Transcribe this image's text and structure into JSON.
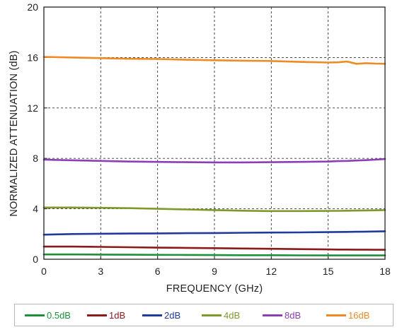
{
  "chart_data": {
    "type": "line",
    "title": "",
    "xlabel": "FREQUENCY (GHz)",
    "ylabel": "NORMALIZED ATTENUATION (dB)",
    "xlim": [
      0,
      18
    ],
    "ylim": [
      0,
      20
    ],
    "xticks": [
      "0",
      "3",
      "6",
      "9",
      "12",
      "15",
      "18"
    ],
    "yticks": [
      "0",
      "4",
      "8",
      "12",
      "16",
      "20"
    ],
    "grid": true,
    "legend_position": "bottom",
    "x": [
      0,
      1.5,
      3,
      4.5,
      6,
      7.5,
      9,
      10.5,
      12,
      13.5,
      15,
      15.5,
      16,
      16.5,
      17,
      17.5,
      18
    ],
    "series": [
      {
        "name": "0.5dB",
        "color": "#1e8f3a",
        "values": [
          0.38,
          0.38,
          0.37,
          0.36,
          0.35,
          0.34,
          0.33,
          0.32,
          0.32,
          0.31,
          0.3,
          0.3,
          0.3,
          0.3,
          0.3,
          0.3,
          0.3
        ]
      },
      {
        "name": "1dB",
        "color": "#8b1a1a",
        "values": [
          1.0,
          1.0,
          0.98,
          0.95,
          0.92,
          0.9,
          0.88,
          0.85,
          0.83,
          0.8,
          0.78,
          0.77,
          0.77,
          0.76,
          0.76,
          0.75,
          0.75
        ]
      },
      {
        "name": "2dB",
        "color": "#1f3b9c",
        "values": [
          1.95,
          2.0,
          2.02,
          2.04,
          2.05,
          2.07,
          2.08,
          2.1,
          2.12,
          2.13,
          2.15,
          2.16,
          2.17,
          2.18,
          2.19,
          2.2,
          2.22
        ]
      },
      {
        "name": "4dB",
        "color": "#7f9a2a",
        "values": [
          4.1,
          4.1,
          4.08,
          4.05,
          4.0,
          3.95,
          3.9,
          3.85,
          3.82,
          3.82,
          3.83,
          3.84,
          3.85,
          3.86,
          3.87,
          3.88,
          3.9
        ]
      },
      {
        "name": "8dB",
        "color": "#8a3fb5",
        "values": [
          7.9,
          7.85,
          7.8,
          7.75,
          7.72,
          7.7,
          7.68,
          7.68,
          7.7,
          7.72,
          7.75,
          7.78,
          7.8,
          7.83,
          7.86,
          7.9,
          7.95
        ]
      },
      {
        "name": "16dB",
        "color": "#f08a24",
        "values": [
          16.05,
          16.0,
          15.95,
          15.9,
          15.88,
          15.82,
          15.78,
          15.75,
          15.72,
          15.65,
          15.6,
          15.62,
          15.68,
          15.5,
          15.55,
          15.52,
          15.5
        ]
      }
    ]
  }
}
